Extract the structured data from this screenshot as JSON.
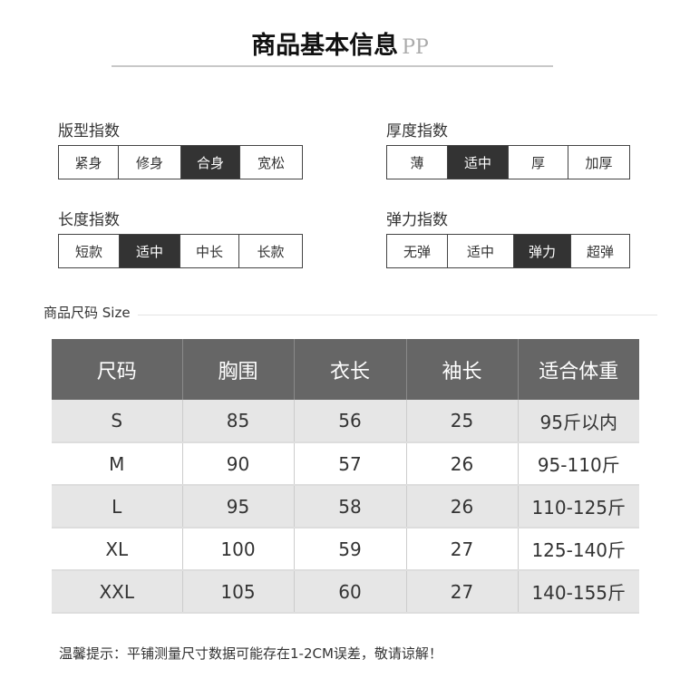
{
  "title": "商品基本信息",
  "title_mark": "PP",
  "indices": [
    {
      "label": "版型指数",
      "options": [
        "紧身",
        "修身",
        "合身",
        "宽松"
      ],
      "selected": 2
    },
    {
      "label": "厚度指数",
      "options": [
        "薄",
        "适中",
        "厚",
        "加厚"
      ],
      "selected": 1
    },
    {
      "label": "长度指数",
      "options": [
        "短款",
        "适中",
        "中长",
        "长款"
      ],
      "selected": 1
    },
    {
      "label": "弹力指数",
      "options": [
        "无弹",
        "适中",
        "弹力",
        "超弹"
      ],
      "selected": 2
    }
  ],
  "size_section_label": "商品尺码 Size",
  "size_table": {
    "headers": [
      "尺码",
      "胸围",
      "衣长",
      "袖长",
      "适合体重"
    ],
    "rows": [
      [
        "S",
        "85",
        "56",
        "25",
        "95斤以内"
      ],
      [
        "M",
        "90",
        "57",
        "26",
        "95-110斤"
      ],
      [
        "L",
        "95",
        "58",
        "26",
        "110-125斤"
      ],
      [
        "XL",
        "100",
        "59",
        "27",
        "125-140斤"
      ],
      [
        "XXL",
        "105",
        "60",
        "27",
        "140-155斤"
      ]
    ]
  },
  "note": "温馨提示：平铺测量尺寸数据可能存在1-2CM误差，敬请谅解！"
}
